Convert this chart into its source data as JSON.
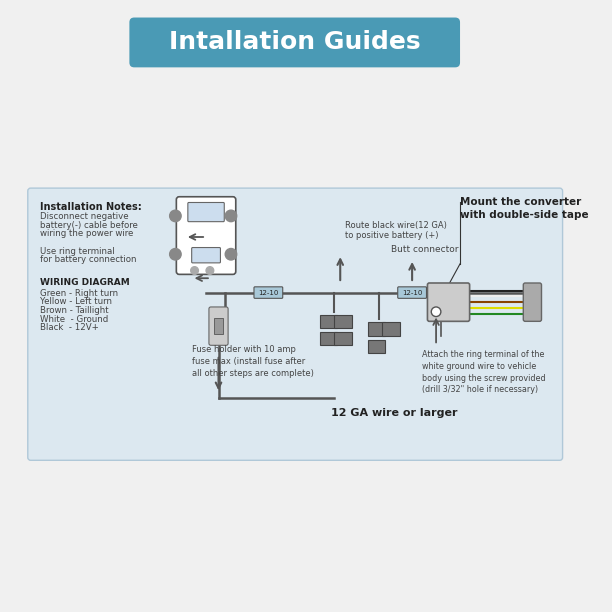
{
  "title": "Intallation Guides",
  "title_bg_color": "#4a9ab5",
  "title_text_color": "#ffffff",
  "bg_color": "#f0f0f0",
  "diagram_bg_color": "#dce8f0",
  "diagram_border_color": "#b0c8d8",
  "notes_title": "Installation Notes:",
  "notes_lines": [
    "Disconnect negative",
    "battery(-) cable before",
    "wiring the power wire",
    "",
    "Use ring terminal",
    "for battery connection"
  ],
  "wiring_title": "WIRING DIAGRAM",
  "wiring_lines": [
    "Green - Right turn",
    "Yellow - Left turn",
    "Brown - Taillight",
    "White  - Ground",
    "Black  - 12V+"
  ],
  "label_route_black": "Route black wire(12 GA)\nto positive battery (+)",
  "label_butt_connector": "Butt connector",
  "label_mount": "Mount the converter\nwith double-side tape",
  "label_fuse": "Fuse holder with 10 amp\nfuse max (install fuse after\nall other steps are complete)",
  "label_12ga": "12 GA wire or larger",
  "label_ring": "Attach the ring terminal of the\nwhite ground wire to vehicle\nbody using the screw provided\n(drill 3/32\" hole if necessary)",
  "label_1210_left": "12-10",
  "label_1210_right": "12-10",
  "wire_color": "#555555",
  "component_color": "#888888",
  "text_color": "#444444",
  "arrow_color": "#555555"
}
